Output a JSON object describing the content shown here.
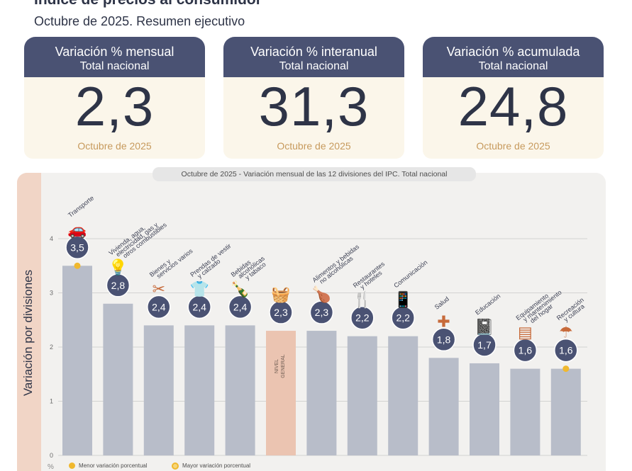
{
  "header": {
    "title": "Índice de precios al consumidor",
    "subtitle": "Octubre de 2025. Resumen ejecutivo"
  },
  "kpis": [
    {
      "title": "Variación % mensual",
      "scope": "Total nacional",
      "value": "2,3",
      "period": "Octubre de 2025"
    },
    {
      "title": "Variación % interanual",
      "scope": "Total nacional",
      "value": "31,3",
      "period": "Octubre de 2025"
    },
    {
      "title": "Variación % acumulada",
      "scope": "Total nacional",
      "value": "24,8",
      "period": "Octubre de 2025"
    }
  ],
  "chart_data": {
    "type": "bar",
    "title_period": "Octubre de 2025",
    "title": " - Variación mensual de las 12 divisiones del IPC. Total nacional",
    "ylabel": "Variación por divisiones",
    "yunit": "%",
    "ylim": [
      0,
      4
    ],
    "yticks": [
      0,
      1,
      2,
      3,
      4
    ],
    "grid": true,
    "categories": [
      "Transporte",
      "Vivienda, agua, electricidad, gas y otros combustibles",
      "Bienes y servicios varios",
      "Prendas de vestir y calzado",
      "Bebidas alcohólicas y tabaco",
      "NIVEL GENERAL",
      "Alimentos y bebidas no alcohólicas",
      "Restaurantes y hoteles",
      "Comunicación",
      "Salud",
      "Educación",
      "Equipamiento y mantenimiento del hogar",
      "Recreación y cultura"
    ],
    "values": [
      3.5,
      2.8,
      2.4,
      2.4,
      2.4,
      2.3,
      2.3,
      2.2,
      2.2,
      1.8,
      1.7,
      1.6,
      1.6
    ],
    "value_labels": [
      "3,5",
      "2,8",
      "2,4",
      "2,4",
      "2,4",
      "2,3",
      "2,3",
      "2,2",
      "2,2",
      "1,8",
      "1,7",
      "1,6",
      "1,6"
    ],
    "category_labels": [
      [
        "Transporte"
      ],
      [
        "Vivienda, agua,",
        "electricidad, gas y",
        "otros combustibles"
      ],
      [
        "Bienes y",
        "servicios varios"
      ],
      [
        "Prendas de vestir",
        "y calzado"
      ],
      [
        "Bebidas",
        "alcohólicas",
        "y tabaco"
      ],
      [
        "NIVEL",
        "GENERAL"
      ],
      [
        "Alimentos y bebidas",
        "no alcohólicas"
      ],
      [
        "Restaurantes",
        "y hoteles"
      ],
      [
        "Comunicación"
      ],
      [
        "Salud"
      ],
      [
        "Educación"
      ],
      [
        "Equipamiento",
        "y mantenimiento",
        "del hogar"
      ],
      [
        "Recreación",
        "y cultura"
      ]
    ],
    "icons": [
      "car-icon",
      "lightbulb-icon",
      "grooming-icon",
      "shirt-icon",
      "bottles-icon",
      "shopping-basket-icon",
      "food-icon",
      "restaurant-icon",
      "phone-icon",
      "health-cross-icon",
      "notebook-icon",
      "appliance-icon",
      "beach-umbrella-icon"
    ],
    "highlight_index": 5,
    "max_marker_index": 0,
    "min_marker_index": 12,
    "legend": [
      "Menor variación porcentual",
      "Mayor variación porcentual"
    ],
    "colors": {
      "bar": "#b8bdc9",
      "highlight_bar": "#ebc4b1",
      "badge": "#4a5273",
      "marker": "#f0b82e",
      "grid": "#c9c9c9"
    }
  }
}
